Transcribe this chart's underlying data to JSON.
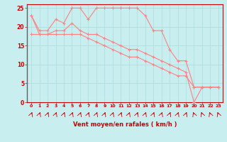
{
  "xlabel": "Vent moyen/en rafales ( km/h )",
  "background_color": "#c8eef0",
  "grid_color": "#aadddd",
  "line_color": "#ff8080",
  "xlim_min": 0,
  "xlim_max": 23,
  "ylim_min": 0,
  "ylim_max": 26,
  "hours": [
    0,
    1,
    2,
    3,
    4,
    5,
    6,
    7,
    8,
    9,
    10,
    11,
    12,
    13,
    14,
    15,
    16,
    17,
    18,
    19,
    20,
    21,
    22,
    23
  ],
  "wind_gust": [
    23,
    19,
    19,
    22,
    21,
    25,
    25,
    22,
    25,
    25,
    25,
    25,
    25,
    25,
    23,
    19,
    19,
    14,
    11,
    11,
    4,
    4,
    4,
    4
  ],
  "wind_avg": [
    23,
    18,
    18,
    19,
    19,
    21,
    19,
    18,
    18,
    17,
    16,
    15,
    14,
    14,
    13,
    12,
    11,
    10,
    9,
    8,
    0,
    4,
    4,
    4
  ],
  "wind_min": [
    18,
    18,
    18,
    18,
    18,
    18,
    18,
    17,
    16,
    15,
    14,
    13,
    12,
    12,
    11,
    10,
    9,
    8,
    7,
    7,
    4,
    4,
    4,
    4
  ],
  "wind_dir_ne_hours": [
    0,
    1,
    2,
    3,
    4,
    5,
    6,
    7,
    8,
    9,
    10,
    11,
    12,
    13,
    14,
    15,
    16,
    17,
    18,
    19
  ],
  "wind_dir_sw_hours": [
    20,
    21,
    22,
    23
  ],
  "ytick_values": [
    0,
    5,
    10,
    15,
    20,
    25
  ],
  "xtick_values": [
    0,
    1,
    2,
    3,
    4,
    5,
    6,
    7,
    8,
    9,
    10,
    11,
    12,
    13,
    14,
    15,
    16,
    17,
    18,
    19,
    20,
    21,
    22,
    23
  ]
}
